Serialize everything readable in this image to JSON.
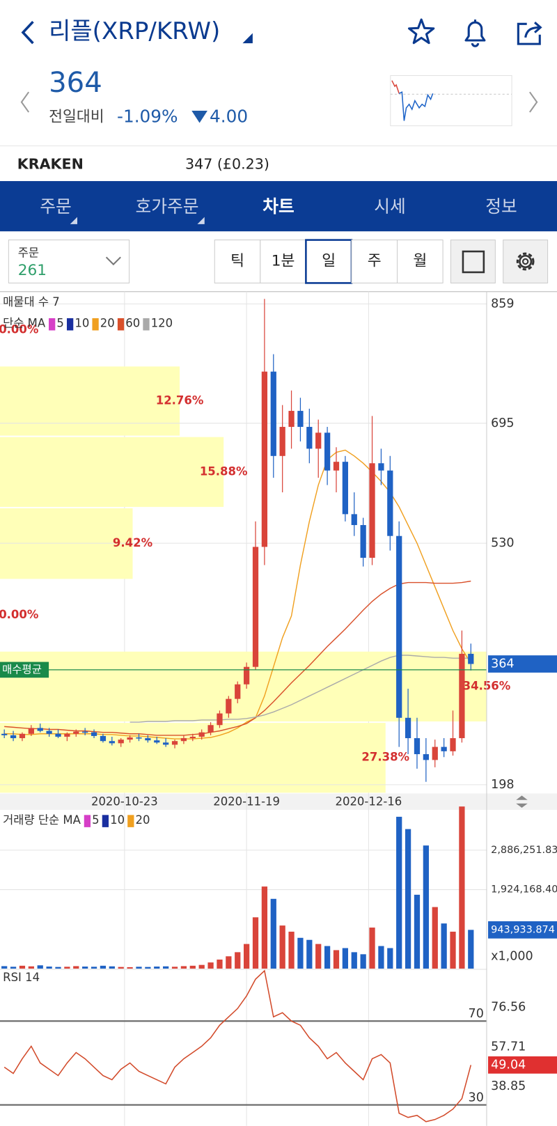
{
  "header": {
    "title": "리플(XRP/KRW)",
    "price": "364",
    "change_label": "전일대비",
    "change_rate": "-1.09%",
    "change_amount": "4.00"
  },
  "exchange": {
    "name": "KRAKEN",
    "price": "347 (£0.23)"
  },
  "tabs": [
    {
      "label": "주문",
      "menu": true
    },
    {
      "label": "호가주문",
      "menu": true
    },
    {
      "label": "차트",
      "active": true
    },
    {
      "label": "시세"
    },
    {
      "label": "정보"
    }
  ],
  "order_select": {
    "label": "주문",
    "value": "261"
  },
  "periods": [
    {
      "label": "틱"
    },
    {
      "label": "1분"
    },
    {
      "label": "일",
      "active": true
    },
    {
      "label": "주"
    },
    {
      "label": "월"
    }
  ],
  "chart_data": [
    {
      "type": "candlestick",
      "title": "매물대 수 7",
      "up_color": "#d9443a",
      "down_color": "#1f62c4",
      "ylim": [
        186,
        872
      ],
      "yticks": [
        859,
        695,
        530,
        198
      ],
      "grid": true,
      "xticks": [
        {
          "value": 13.4,
          "label": "2020-10-23"
        },
        {
          "value": 27,
          "label": "2020-11-19"
        },
        {
          "value": 40.6,
          "label": "2020-12-16"
        }
      ],
      "legend": {
        "label": "단순 MA",
        "periods": [
          {
            "label": 5,
            "color": "#d63fc7"
          },
          {
            "label": 10,
            "color": "#1a2fa0"
          },
          {
            "label": 20,
            "color": "#f0a020",
            "values": [
              268,
              268,
              267,
              267,
              268,
              268,
              268,
              268,
              268,
              268,
              268,
              267,
              267,
              266,
              265,
              265,
              264,
              263,
              262,
              261,
              261,
              261,
              262,
              263,
              266,
              270,
              276,
              284,
              290,
              320,
              360,
              400,
              430,
              500,
              560,
              610,
              645,
              655,
              658,
              650,
              640,
              628,
              615,
              600,
              580,
              555,
              530,
              500,
              470,
              440,
              410,
              385,
              365
            ]
          },
          {
            "label": 60,
            "color": "#d9502a",
            "values": [
              278,
              277,
              276,
              275,
              275,
              274,
              274,
              273,
              272,
              272,
              271,
              270,
              270,
              269,
              268,
              268,
              267,
              266,
              266,
              266,
              266,
              267,
              268,
              270,
              272,
              275,
              278,
              282,
              290,
              300,
              312,
              325,
              338,
              350,
              362,
              375,
              388,
              400,
              412,
              425,
              438,
              450,
              460,
              468,
              474,
              476,
              476,
              476,
              475,
              475,
              475,
              476,
              478
            ]
          },
          {
            "label": 120,
            "color": "#aaaaaa",
            "values": [
              null,
              null,
              null,
              null,
              null,
              null,
              null,
              null,
              null,
              null,
              null,
              null,
              null,
              null,
              284,
              284,
              285,
              285,
              285,
              286,
              286,
              286,
              287,
              287,
              287,
              288,
              288,
              289,
              291,
              294,
              298,
              303,
              308,
              314,
              320,
              326,
              332,
              338,
              344,
              350,
              356,
              362,
              368,
              373,
              376,
              376,
              375,
              374,
              373,
              373,
              372,
              372,
              372
            ]
          }
        ]
      },
      "volume_profile": {
        "color": "#ffffb8",
        "label_color": "#d32f2f",
        "bins": [
          186,
          284,
          382,
          480,
          579,
          677,
          774,
          872
        ],
        "values": [
          27.38,
          34.56,
          0,
          9.42,
          15.88,
          12.76,
          0
        ],
        "value_labels": [
          "27.38%",
          "34.56%",
          "0.00%",
          "9.42%",
          "15.88%",
          "12.76%",
          "0.00%"
        ]
      },
      "avg_buy": {
        "label": "매수평균",
        "value": 356,
        "color": "#1a8a4a"
      },
      "current_price": 364,
      "candles": [
        [
          268,
          274,
          262,
          266
        ],
        [
          266,
          272,
          258,
          262
        ],
        [
          262,
          270,
          258,
          268
        ],
        [
          268,
          280,
          265,
          276
        ],
        [
          276,
          282,
          270,
          272
        ],
        [
          272,
          276,
          264,
          268
        ],
        [
          268,
          274,
          262,
          264
        ],
        [
          264,
          270,
          258,
          268
        ],
        [
          268,
          274,
          264,
          271
        ],
        [
          271,
          276,
          266,
          270
        ],
        [
          270,
          274,
          262,
          265
        ],
        [
          265,
          268,
          256,
          258
        ],
        [
          258,
          264,
          252,
          255
        ],
        [
          255,
          262,
          250,
          260
        ],
        [
          260,
          266,
          256,
          263
        ],
        [
          263,
          268,
          258,
          262
        ],
        [
          262,
          266,
          256,
          259
        ],
        [
          259,
          264,
          254,
          256
        ],
        [
          256,
          262,
          250,
          253
        ],
        [
          253,
          260,
          248,
          258
        ],
        [
          258,
          266,
          254,
          262
        ],
        [
          262,
          268,
          258,
          264
        ],
        [
          264,
          274,
          260,
          270
        ],
        [
          270,
          284,
          266,
          280
        ],
        [
          280,
          300,
          276,
          296
        ],
        [
          296,
          320,
          290,
          316
        ],
        [
          316,
          340,
          310,
          336
        ],
        [
          336,
          366,
          330,
          360
        ],
        [
          360,
          560,
          356,
          525
        ],
        [
          525,
          866,
          500,
          766
        ],
        [
          766,
          790,
          620,
          650
        ],
        [
          650,
          720,
          600,
          690
        ],
        [
          690,
          740,
          660,
          712
        ],
        [
          712,
          730,
          670,
          690
        ],
        [
          690,
          715,
          640,
          660
        ],
        [
          660,
          700,
          620,
          682
        ],
        [
          682,
          690,
          610,
          630
        ],
        [
          630,
          662,
          600,
          642
        ],
        [
          642,
          650,
          560,
          570
        ],
        [
          570,
          600,
          540,
          555
        ],
        [
          555,
          565,
          498,
          510
        ],
        [
          510,
          705,
          500,
          640
        ],
        [
          640,
          660,
          610,
          630
        ],
        [
          630,
          650,
          520,
          540
        ],
        [
          540,
          560,
          250,
          290
        ],
        [
          290,
          330,
          240,
          262
        ],
        [
          262,
          290,
          220,
          240
        ],
        [
          240,
          262,
          202,
          232
        ],
        [
          232,
          260,
          222,
          250
        ],
        [
          250,
          262,
          236,
          244
        ],
        [
          244,
          300,
          238,
          262
        ],
        [
          262,
          410,
          256,
          378
        ],
        [
          378,
          392,
          355,
          364
        ]
      ]
    },
    {
      "type": "bar",
      "legend": {
        "label": "거래량 단순 MA",
        "periods": [
          {
            "label": 5,
            "color": "#d63fc7"
          },
          {
            "label": 10,
            "color": "#1a2fa0"
          },
          {
            "label": 20,
            "color": "#f0a020"
          }
        ]
      },
      "ylim": [
        0,
        3866000
      ],
      "yticks": [
        {
          "value": 2886251.831,
          "label": "2,886,251.831"
        },
        {
          "value": 1924168.401,
          "label": "1,924,168.401"
        }
      ],
      "current": {
        "value": 943933.874,
        "label": "943,933.874"
      },
      "unit_note": "x1,000",
      "values": [
        60000,
        45000,
        70000,
        55000,
        80000,
        50000,
        40000,
        45000,
        60000,
        50000,
        45000,
        70000,
        55000,
        40000,
        35000,
        45000,
        40000,
        50000,
        55000,
        45000,
        60000,
        70000,
        90000,
        150000,
        220000,
        300000,
        400000,
        600000,
        1250000,
        2000000,
        1700000,
        1050000,
        900000,
        750000,
        700000,
        600000,
        550000,
        450000,
        500000,
        400000,
        350000,
        1000000,
        550000,
        500000,
        3700000,
        3400000,
        1800000,
        3000000,
        1500000,
        1100000,
        900000,
        3950000,
        943933.874
      ]
    },
    {
      "type": "line",
      "title": "RSI 14",
      "color": "#d24a2a",
      "ylim": [
        20,
        94.7
      ],
      "yticks": [
        76.56,
        57.71,
        38.85
      ],
      "levels": [
        70,
        30
      ],
      "current": 49.04,
      "values": [
        48,
        45,
        52,
        58,
        50,
        47,
        44,
        50,
        55,
        52,
        48,
        44,
        42,
        47,
        50,
        46,
        44,
        42,
        40,
        48,
        52,
        55,
        58,
        62,
        68,
        72,
        76,
        82,
        90,
        94,
        72,
        74,
        70,
        68,
        62,
        58,
        52,
        55,
        50,
        46,
        42,
        52,
        54,
        50,
        26,
        24,
        25,
        22,
        23,
        25,
        28,
        33,
        49.04
      ]
    }
  ]
}
